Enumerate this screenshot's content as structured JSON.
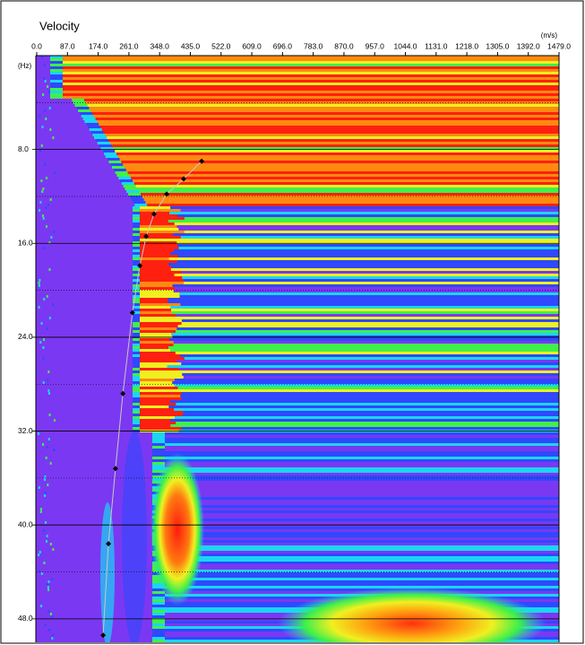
{
  "chart_data": {
    "type": "scatter",
    "title": "Velocity",
    "x_unit": "(m/s)",
    "y_unit": "(Hz)",
    "x": [
      467,
      416,
      368,
      332,
      310,
      292,
      271,
      244,
      223,
      203,
      188
    ],
    "values": [
      9.0,
      10.5,
      11.8,
      13.5,
      15.4,
      17.9,
      21.9,
      28.8,
      35.2,
      41.6,
      49.4
    ],
    "color": "#000000",
    "xlim": [
      0,
      1479
    ],
    "xticks": [
      {
        "value": 0,
        "label": "0.0"
      },
      {
        "value": 87,
        "label": "87.0"
      },
      {
        "value": 174,
        "label": "174.0"
      },
      {
        "value": 261,
        "label": "261.0"
      },
      {
        "value": 348,
        "label": "348.0"
      },
      {
        "value": 435,
        "label": "435.0"
      },
      {
        "value": 522,
        "label": "522.0"
      },
      {
        "value": 609,
        "label": "609.0"
      },
      {
        "value": 696,
        "label": "696.0"
      },
      {
        "value": 783,
        "label": "783.0"
      },
      {
        "value": 870,
        "label": "870.0"
      },
      {
        "value": 957,
        "label": "957.0"
      },
      {
        "value": 1044,
        "label": "1044.0"
      },
      {
        "value": 1131,
        "label": "1131.0"
      },
      {
        "value": 1218,
        "label": "1218.0"
      },
      {
        "value": 1305,
        "label": "1305.0"
      },
      {
        "value": 1392,
        "label": "1392.0"
      },
      {
        "value": 1479,
        "label": "1479.0"
      }
    ],
    "ylim": [
      0,
      50
    ],
    "yticks": [
      {
        "value": 8,
        "label": "8.0"
      },
      {
        "value": 16,
        "label": "16.0"
      },
      {
        "value": 24,
        "label": "24.0"
      },
      {
        "value": 32,
        "label": "32.0"
      },
      {
        "value": 40,
        "label": "40.0"
      },
      {
        "value": 48,
        "label": "48.0"
      }
    ]
  }
}
